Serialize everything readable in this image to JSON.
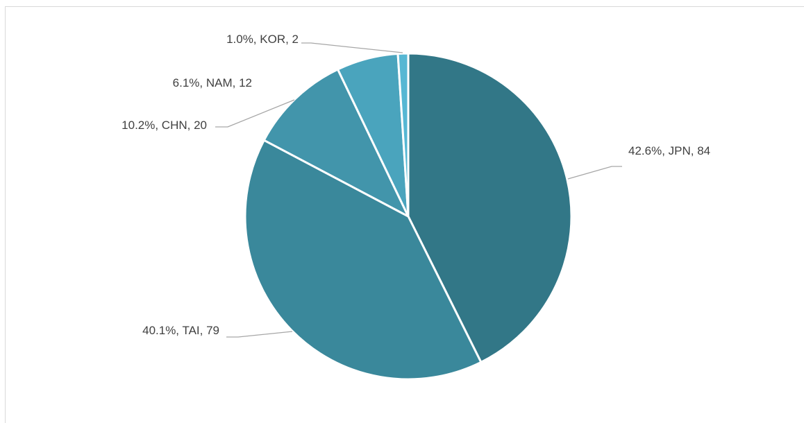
{
  "chart_data": {
    "type": "pie",
    "title": "",
    "categories": [
      "JPN",
      "TAI",
      "CHN",
      "NAM",
      "KOR"
    ],
    "values": [
      84,
      79,
      20,
      12,
      2
    ],
    "percentages": [
      "42.6%",
      "40.1%",
      "10.2%",
      "6.1%",
      "1.0%"
    ],
    "labels": [
      "42.6%, JPN, 84",
      "40.1%, TAI, 79",
      "10.2%, CHN, 20",
      "6.1%, NAM, 12",
      "1.0%, KOR, 2"
    ],
    "start_angle_deg": 0,
    "direction": "clockwise",
    "legend": "none",
    "colors": [
      "#327787",
      "#3a889b",
      "#4295ab",
      "#4aa4bd",
      "#56b7d3"
    ]
  }
}
